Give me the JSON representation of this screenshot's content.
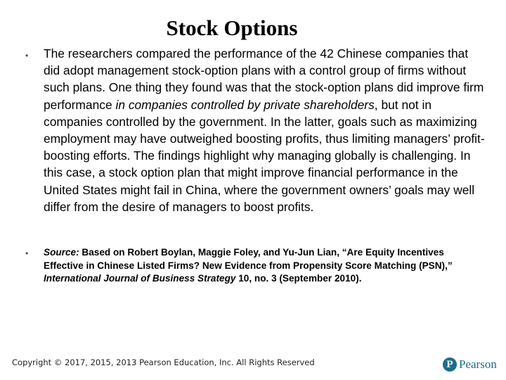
{
  "slide": {
    "title": "Stock Options",
    "bullet1": {
      "part1": "The researchers compared the performance of the 42 Chinese companies that did adopt management stock-option plans with a control group of firms without such plans. One thing they found was that the stock-option plans did improve firm performance ",
      "italic": "in companies controlled by private shareholders",
      "part2": ", but not in companies controlled by the government. In the latter, goals such as maximizing employment may have outweighed boosting profits, thus limiting managers’ profit-boosting efforts.  The findings highlight why managing globally is challenging. In this case, a stock option plan that might improve financial performance in the United States might fail in China, where the government owners’ goals may well differ from the desire of managers to boost profits."
    },
    "bullet2": {
      "label": "Source:",
      "part1": " Based on Robert Boylan, Maggie Foley, and Yu-Jun Lian, “Are Equity Incentives Effective in Chinese Listed Firms? New Evidence from Propensity Score Matching (PSN),” ",
      "journal": "International Journal of Business Strategy",
      "part2": " 10, no. 3 (September 2010)."
    },
    "bullet_glyph": "•"
  },
  "footer": {
    "copyright": "Copyright © 2017, 2015, 2013 Pearson Education, Inc. All Rights Reserved",
    "logo_mark": "P",
    "logo_word": "Pearson",
    "logo_color": "#1b6d8c"
  }
}
